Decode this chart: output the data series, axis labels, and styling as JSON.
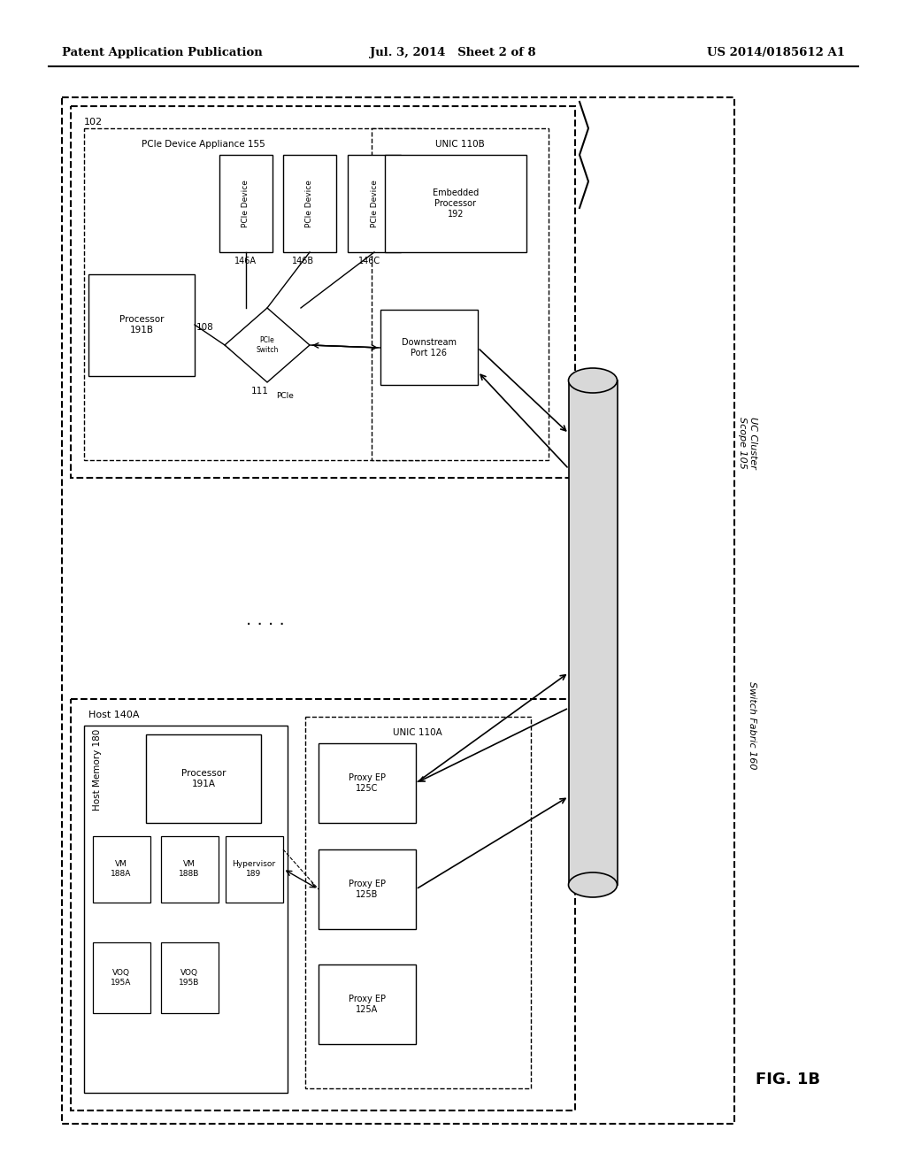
{
  "bg_color": "#ffffff",
  "header_left": "Patent Application Publication",
  "header_center": "Jul. 3, 2014   Sheet 2 of 8",
  "header_right": "US 2014/0185612 A1",
  "fig_label": "FIG. 1B"
}
